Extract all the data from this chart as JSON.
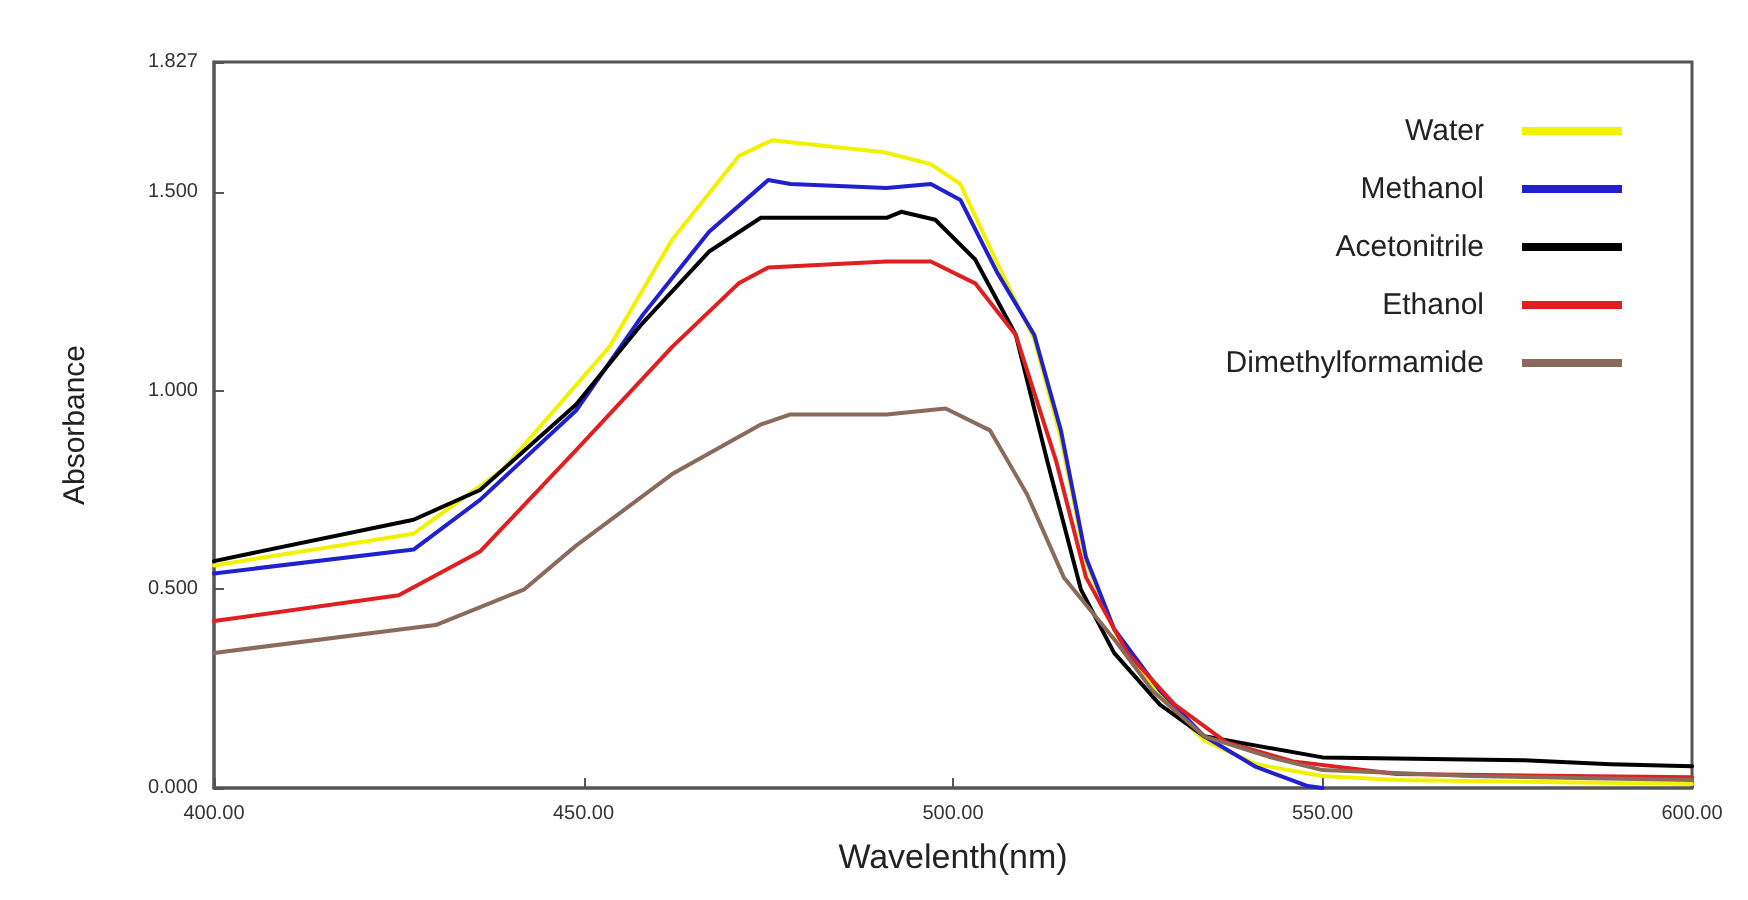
{
  "chart_data": {
    "type": "line",
    "xlabel": "Wavelenth(nm)",
    "ylabel": "Absorbance",
    "xlim": [
      400,
      600
    ],
    "ylim": [
      0,
      1.827
    ],
    "xticks": [
      {
        "value": 400,
        "label": "400.00"
      },
      {
        "value": 450,
        "label": "450.00"
      },
      {
        "value": 500,
        "label": "500.00"
      },
      {
        "value": 550,
        "label": "550.00"
      },
      {
        "value": 600,
        "label": "600.00"
      }
    ],
    "yticks": [
      {
        "value": 0,
        "label": "0.000"
      },
      {
        "value": 0.5,
        "label": "0.500"
      },
      {
        "value": 1,
        "label": "1.000"
      },
      {
        "value": 1.5,
        "label": "1.500"
      },
      {
        "value": 1.827,
        "label": "1.827"
      }
    ],
    "grid": false,
    "legend": "top right",
    "marker": "none",
    "line_style": "solid",
    "series": [
      {
        "name": "Water",
        "color": "#f2f200",
        "x": [
          400,
          427,
          439,
          453.5,
          462,
          471,
          475.5,
          490.7,
          497,
          501,
          506,
          511,
          514.6,
          518,
          522,
          528,
          534,
          541,
          550,
          560,
          600
        ],
        "values": [
          0.56,
          0.64,
          0.8,
          1.11,
          1.38,
          1.59,
          1.63,
          1.6,
          1.57,
          1.52,
          1.32,
          1.13,
          0.88,
          0.57,
          0.39,
          0.23,
          0.12,
          0.06,
          0.03,
          0.02,
          0.01
        ]
      },
      {
        "name": "Methanol",
        "color": "#2020d0",
        "x": [
          400,
          427,
          436,
          449,
          458,
          467,
          475,
          478,
          491,
          497,
          501,
          505.9,
          511,
          514.6,
          518,
          521.8,
          528,
          534,
          541,
          548,
          550
        ],
        "values": [
          0.54,
          0.6,
          0.725,
          0.95,
          1.19,
          1.4,
          1.53,
          1.52,
          1.51,
          1.52,
          1.48,
          1.3,
          1.14,
          0.9,
          0.58,
          0.4,
          0.245,
          0.13,
          0.053,
          0.005,
          0
        ]
      },
      {
        "name": "Acetonitrile",
        "color": "#000000",
        "x": [
          400,
          427,
          436,
          449,
          458,
          467,
          474,
          491,
          493,
          497.6,
          503,
          508.5,
          512.8,
          517.3,
          521.8,
          528,
          534,
          550,
          577,
          589,
          600
        ],
        "values": [
          0.571,
          0.675,
          0.75,
          0.965,
          1.17,
          1.35,
          1.435,
          1.435,
          1.45,
          1.43,
          1.33,
          1.14,
          0.82,
          0.5,
          0.34,
          0.21,
          0.13,
          0.077,
          0.07,
          0.06,
          0.055
        ]
      },
      {
        "name": "Ethanol",
        "color": "#e02020",
        "x": [
          400,
          425,
          436,
          449,
          462,
          471,
          475,
          491,
          497,
          503,
          508.5,
          514,
          518,
          523.6,
          530,
          537,
          546,
          560,
          600
        ],
        "values": [
          0.42,
          0.485,
          0.595,
          0.85,
          1.11,
          1.27,
          1.31,
          1.325,
          1.325,
          1.27,
          1.14,
          0.82,
          0.53,
          0.34,
          0.21,
          0.115,
          0.067,
          0.035,
          0.027
        ]
      },
      {
        "name": "Dimethylformamide",
        "color": "#8a6a5a",
        "x": [
          400,
          430,
          442,
          449,
          462,
          474,
          478,
          491,
          499,
          505,
          510,
          515,
          522,
          527,
          534,
          543,
          550,
          570,
          600
        ],
        "values": [
          0.34,
          0.41,
          0.5,
          0.61,
          0.79,
          0.915,
          0.94,
          0.94,
          0.955,
          0.9,
          0.74,
          0.53,
          0.37,
          0.245,
          0.13,
          0.077,
          0.045,
          0.03,
          0.02
        ]
      }
    ]
  }
}
